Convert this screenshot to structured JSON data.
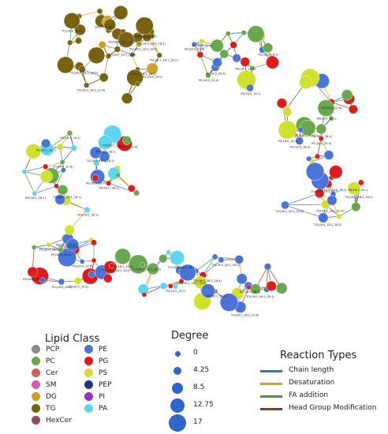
{
  "colors": {
    "PCP": "#8a8a8a",
    "PC": "#6aa84f",
    "Cer": "#d35b5b",
    "SM": "#d35fb0",
    "DG": "#c9a227",
    "TG": "#7a6310",
    "HexCer": "#8e4f5b",
    "PE": "#4a74d8",
    "PG": "#dd1c1c",
    "PS": "#cfe12c",
    "PEP": "#23357a",
    "PI": "#9b2dd0",
    "PA": "#5fd6ee",
    "Chain length": "#3a6fd1",
    "Desaturation": "#e39a24",
    "FA addition": "#4f9a36",
    "Head Group Modification": "#8a3a1e"
  },
  "legend": {
    "lipid_class_title": "Lipid Class",
    "lipid_classes_left": [
      "PCP",
      "PC",
      "Cer",
      "SM",
      "DG",
      "TG",
      "HexCer"
    ],
    "lipid_classes_right": [
      "PE",
      "PG",
      "PS",
      "PEP",
      "PI",
      "PA"
    ],
    "degree_title": "Degree",
    "degree_values": [
      "0",
      "4.25",
      "8.5",
      "12.75",
      "17"
    ],
    "degree_levels": [
      0,
      4.25,
      8.5,
      12.75,
      17
    ],
    "reaction_title": "Reaction Types",
    "reaction_types": [
      "Chain length",
      "Desaturation",
      "FA addition",
      "Head Group Modification"
    ]
  },
  "network": {
    "node_labels": [
      "TG(18:1_18:1_18:2)",
      "TG(16:0_18:1_18:2)",
      "TG(16:0_16:0_18:1)",
      "TG(18:0_18:1_18:1)",
      "TG(16:0_18:1_20:4)",
      "TG(18:1_18:2_22:6)",
      "TG(16:0_18:2_18:2)",
      "TG(16:1_18:1_18:1)",
      "DG(18:1_18:1)",
      "DG(16:0_18:1)",
      "PC(16:0_18:1)",
      "PC(18:0_18:2)",
      "PC(16:0_20:4)",
      "PC(18:1_18:2)",
      "PC(16:0_22:6)",
      "PE(18:0_20:4)",
      "PE(16:0_18:1)",
      "PE(18:1_18:1)",
      "PE(18:0_22:6)",
      "PE(16:0_20:4)",
      "PG(16:0_18:1)",
      "PG(18:1_18:1)",
      "PG(16:0_18:2)",
      "PS(18:0_18:1)",
      "PS(18:0_20:4)",
      "PS(18:0_22:6)",
      "PA(16:0_18:1)",
      "PA(18:1_18:1)"
    ]
  }
}
